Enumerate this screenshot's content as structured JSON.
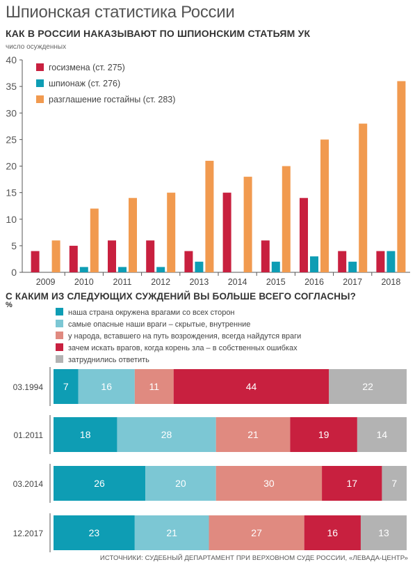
{
  "header": {
    "title": "Шпионская статистика России"
  },
  "chart1": {
    "title": "КАК В РОССИИ НАКАЗЫВАЮТ ПО ШПИОНСКИМ СТАТЬЯМ УК",
    "unit": "число осужденных"
  },
  "chart2": {
    "title": "С КАКИМ ИЗ СЛЕДУЮЩИХ СУЖДЕНИЙ ВЫ БОЛЬШЕ ВСЕГО СОГЛАСНЫ?",
    "unit": "%"
  },
  "source": "ИСТОЧНИКИ: СУДЕБНЫЙ ДЕПАРТАМЕНТ ПРИ ВЕРХОВНОМ СУДЕ РОССИИ, «ЛЕВАДА-ЦЕНТР»",
  "chart_data": [
    {
      "type": "bar",
      "title": "КАК В РОССИИ НАКАЗЫВАЮТ ПО ШПИОНСКИМ СТАТЬЯМ УК",
      "ylabel": "число осужденных",
      "xlabel": "",
      "categories": [
        "2009",
        "2010",
        "2011",
        "2012",
        "2013",
        "2014",
        "2015",
        "2016",
        "2017",
        "2018"
      ],
      "ylim": [
        0,
        40
      ],
      "yticks": [
        0,
        5,
        10,
        15,
        20,
        25,
        30,
        35,
        40
      ],
      "grid": false,
      "legend": "top-left",
      "series": [
        {
          "name": "госизмена (ст. 275)",
          "color": "#c8203f",
          "values": [
            4,
            5,
            6,
            6,
            4,
            15,
            6,
            14,
            4,
            4
          ]
        },
        {
          "name": "шпионаж (ст. 276)",
          "color": "#0e9db4",
          "values": [
            0,
            1,
            1,
            1,
            2,
            0,
            2,
            3,
            2,
            4
          ]
        },
        {
          "name": "разглашение гостайны (ст. 283)",
          "color": "#f19a4f",
          "values": [
            6,
            12,
            14,
            15,
            21,
            18,
            20,
            25,
            28,
            36
          ]
        }
      ]
    },
    {
      "type": "bar",
      "stacked": true,
      "orientation": "horizontal",
      "title": "С КАКИМ ИЗ СЛЕДУЮЩИХ СУЖДЕНИЙ ВЫ БОЛЬШЕ ВСЕГО СОГЛАСНЫ?",
      "unit": "%",
      "legend": "top-left",
      "categories": [
        "03.1994",
        "01.2011",
        "03.2014",
        "12.2017"
      ],
      "series": [
        {
          "name": "наша страна окружена врагами со всех сторон",
          "color": "#0e9db4",
          "values": [
            7,
            18,
            26,
            23
          ]
        },
        {
          "name": "самые опасные наши враги – скрытые, внутренние",
          "color": "#7cc7d4",
          "values": [
            16,
            28,
            20,
            21
          ]
        },
        {
          "name": "у народа, вставшего на путь возрождения, всегда найдутся враги",
          "color": "#e08a80",
          "values": [
            11,
            21,
            30,
            27
          ]
        },
        {
          "name": "зачем искать врагов, когда корень зла – в собственных ошибках",
          "color": "#c8203f",
          "values": [
            44,
            19,
            17,
            16
          ]
        },
        {
          "name": "затруднились ответить",
          "color": "#b3b3b3",
          "values": [
            22,
            14,
            7,
            13
          ]
        }
      ]
    }
  ]
}
